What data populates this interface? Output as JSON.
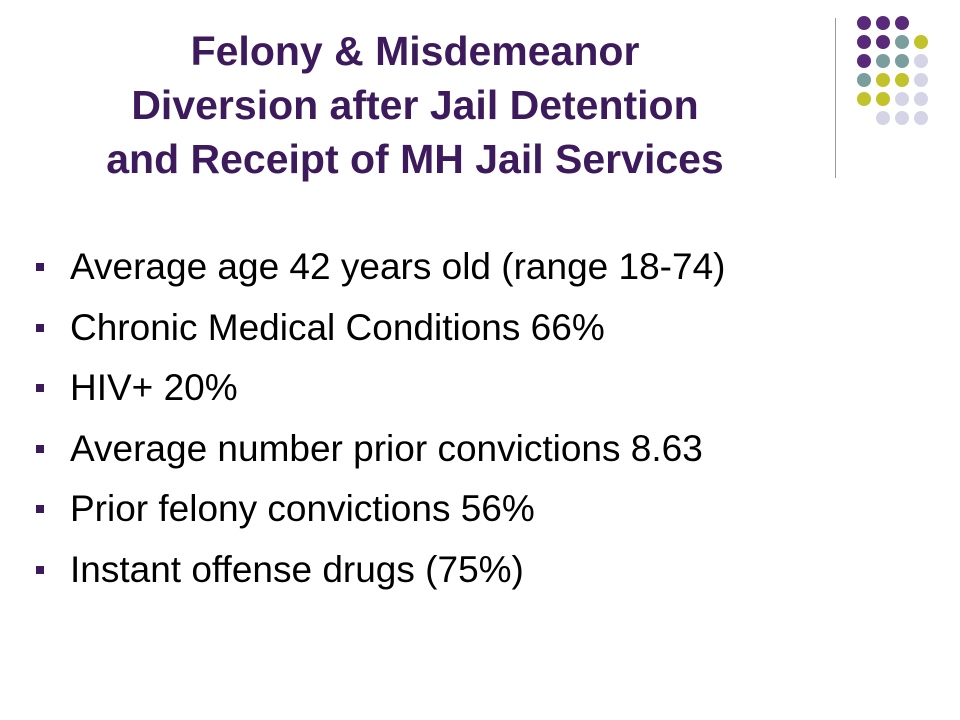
{
  "title": {
    "lines": [
      "Felony & Misdemeanor",
      "Diversion after Jail Detention",
      "and Receipt of MH Jail Services"
    ]
  },
  "bullets": [
    "Average age 42 years old (range 18-74)",
    "Chronic Medical Conditions 66%",
    "HIV+ 20%",
    "Average number prior convictions 8.63",
    "Prior felony convictions 56%",
    "Instant offense drugs (75%)"
  ]
}
